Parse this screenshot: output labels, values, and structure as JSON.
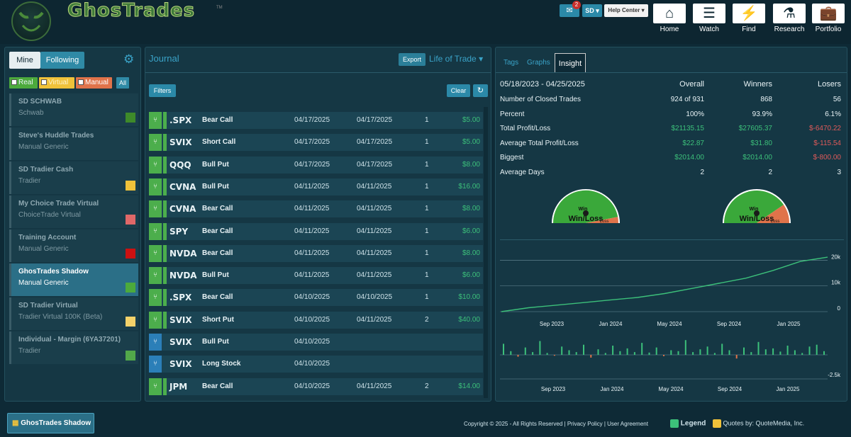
{
  "header": {
    "logo_text": "GhosTrades",
    "tm": "TM",
    "mail_badge": "2",
    "sd_label": "SD",
    "help_label": "Help Center",
    "nav": [
      {
        "label": "Home",
        "icon": "home-icon"
      },
      {
        "label": "Watch",
        "icon": "watch-icon"
      },
      {
        "label": "Find",
        "icon": "find-icon"
      },
      {
        "label": "Research",
        "icon": "research-icon"
      },
      {
        "label": "Portfolio",
        "icon": "portfolio-icon"
      }
    ]
  },
  "sidebar": {
    "tab_mine": "Mine",
    "tab_following": "Following",
    "filters": [
      "Real",
      "Virtual",
      "Manual",
      "All"
    ],
    "accounts": [
      {
        "name": "SD SCHWAB",
        "type": "Schwab",
        "color": "#3e8a2a"
      },
      {
        "name": "Steve's Huddle Trades",
        "type": "Manual Generic",
        "color": ""
      },
      {
        "name": "SD Tradier Cash",
        "type": "Tradier",
        "color": "#f0c23a"
      },
      {
        "name": "My Choice Trade Virtual",
        "type": "ChoiceTrade Virtual",
        "color": "#e06868"
      },
      {
        "name": "Training Account",
        "type": "Manual Generic",
        "color": "#cc1111"
      },
      {
        "name": "GhosTrades Shadow",
        "type": "Manual Generic",
        "color": "#4caa3c"
      },
      {
        "name": "SD Tradier Virtual",
        "type": "Tradier Virtual 100K (Beta)",
        "color": "#f4d26a"
      },
      {
        "name": "Individual - Margin (6YA37201)",
        "type": "Tradier",
        "color": "#52a84a"
      }
    ]
  },
  "journal": {
    "title": "Journal",
    "export": "Export",
    "life_of_trade": "Life of Trade",
    "filters": "Filters",
    "clear": "Clear",
    "rows": [
      {
        "sym": ".SPX",
        "strat": "Bear Call",
        "d1": "04/17/2025",
        "d2": "04/17/2025",
        "qty": "1",
        "pl": "$5.00",
        "closed": true
      },
      {
        "sym": "SVIX",
        "strat": "Short Call",
        "d1": "04/17/2025",
        "d2": "04/17/2025",
        "qty": "1",
        "pl": "$5.00",
        "closed": true
      },
      {
        "sym": "QQQ",
        "strat": "Bull Put",
        "d1": "04/17/2025",
        "d2": "04/17/2025",
        "qty": "1",
        "pl": "$8.00",
        "closed": true
      },
      {
        "sym": "CVNA",
        "strat": "Bull Put",
        "d1": "04/11/2025",
        "d2": "04/11/2025",
        "qty": "1",
        "pl": "$16.00",
        "closed": true
      },
      {
        "sym": "CVNA",
        "strat": "Bear Call",
        "d1": "04/11/2025",
        "d2": "04/11/2025",
        "qty": "1",
        "pl": "$8.00",
        "closed": true
      },
      {
        "sym": "SPY",
        "strat": "Bear Call",
        "d1": "04/11/2025",
        "d2": "04/11/2025",
        "qty": "1",
        "pl": "$6.00",
        "closed": true
      },
      {
        "sym": "NVDA",
        "strat": "Bear Call",
        "d1": "04/11/2025",
        "d2": "04/11/2025",
        "qty": "1",
        "pl": "$8.00",
        "closed": true
      },
      {
        "sym": "NVDA",
        "strat": "Bull Put",
        "d1": "04/11/2025",
        "d2": "04/11/2025",
        "qty": "1",
        "pl": "$6.00",
        "closed": true
      },
      {
        "sym": ".SPX",
        "strat": "Bear Call",
        "d1": "04/10/2025",
        "d2": "04/10/2025",
        "qty": "1",
        "pl": "$10.00",
        "closed": true
      },
      {
        "sym": "SVIX",
        "strat": "Short Put",
        "d1": "04/10/2025",
        "d2": "04/11/2025",
        "qty": "2",
        "pl": "$40.00",
        "closed": true
      },
      {
        "sym": "SVIX",
        "strat": "Bull Put",
        "d1": "04/10/2025",
        "d2": "",
        "qty": "",
        "pl": "",
        "closed": false
      },
      {
        "sym": "SVIX",
        "strat": "Long Stock",
        "d1": "04/10/2025",
        "d2": "",
        "qty": "",
        "pl": "",
        "closed": false
      },
      {
        "sym": "JPM",
        "strat": "Bear Call",
        "d1": "04/10/2025",
        "d2": "04/11/2025",
        "qty": "2",
        "pl": "$14.00",
        "closed": true
      }
    ]
  },
  "insight": {
    "tabs": [
      "Tags",
      "Graphs",
      "Insight"
    ],
    "date_range": "05/18/2023 - 04/25/2025",
    "columns": [
      "Overall",
      "Winners",
      "Losers"
    ],
    "stats": [
      {
        "label": "Number of Closed Trades",
        "overall": "924 of 931",
        "winners": "868",
        "losers": "56"
      },
      {
        "label": "Percent",
        "overall": "100%",
        "winners": "93.9%",
        "losers": "6.1%"
      },
      {
        "label": "Total Profit/Loss",
        "overall": "$21135.15",
        "winners": "$27605.37",
        "losers": "$-6470.22"
      },
      {
        "label": "Average Total Profit/Loss",
        "overall": "$22.87",
        "winners": "$31.80",
        "losers": "$-115.54"
      },
      {
        "label": "Biggest",
        "overall": "$2014.00",
        "winners": "$2014.00",
        "losers": "$-800.00"
      },
      {
        "label": "Average Days",
        "overall": "2",
        "winners": "2",
        "losers": "3"
      }
    ],
    "gauges": [
      {
        "title": "Win/Loss",
        "win_label": "Win",
        "loss_label": "Loss",
        "win_fraction": 0.939
      },
      {
        "title": "Win/Loss",
        "win_label": "Win",
        "loss_label": "Loss",
        "win_fraction": 0.81
      }
    ]
  },
  "chart_data": [
    {
      "type": "line",
      "x": [
        "2023-05",
        "2023-07",
        "2023-09",
        "2023-11",
        "2024-01",
        "2024-03",
        "2024-05",
        "2024-07",
        "2024-09",
        "2024-11",
        "2025-01",
        "2025-03",
        "2025-04"
      ],
      "values": [
        0,
        1500,
        2500,
        3500,
        4500,
        5500,
        7000,
        9000,
        11000,
        13000,
        16000,
        19500,
        21135
      ],
      "x_ticks": [
        "Sep 2023",
        "Jan 2024",
        "May 2024",
        "Sep 2024",
        "Jan 2025"
      ],
      "y_ticks": [
        "0",
        "10k",
        "20k"
      ],
      "ylim": [
        0,
        22000
      ],
      "color": "#3cc07a"
    },
    {
      "type": "bar",
      "x_ticks": [
        "Sep 2023",
        "Jan 2024",
        "May 2024",
        "Sep 2024",
        "Jan 2025"
      ],
      "y_ticks": [
        "-2.5k"
      ],
      "values": [
        1200,
        400,
        -200,
        800,
        300,
        1500,
        200,
        -100,
        900,
        500,
        300,
        1100,
        -300,
        600,
        200,
        1000,
        400,
        700,
        300,
        1300,
        250,
        800,
        -150,
        500,
        400,
        1600,
        300,
        600,
        900,
        200,
        1200,
        500,
        -400,
        800,
        300,
        1400,
        600,
        700,
        350,
        1000,
        500,
        200,
        900,
        1100,
        400
      ],
      "color_pos": "#3cc07a",
      "color_neg": "#e0734a"
    }
  ],
  "footer": {
    "account_button": "GhosTrades Shadow",
    "copyright": "Copyright © 2025 - All Rights Reserved | Privacy Policy | User Agreement",
    "legend": "Legend",
    "quotes": "Quotes by: QuoteMedia, Inc."
  }
}
